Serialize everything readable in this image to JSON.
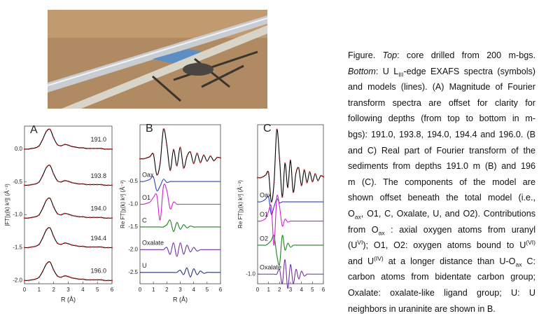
{
  "figure": {
    "caption": {
      "lines": [
        [
          "Figure. ",
          {
            "i": "Top"
          },
          ": core drilled from 200 m-bgs."
        ],
        [
          {
            "i": "Bottom"
          },
          ": U L",
          {
            "sub": "III"
          },
          "-edge EXAFS spectra (symbols)"
        ],
        [
          "and models (lines). (A) Magnitude of Fourier"
        ],
        [
          "transform spectra are offset for clarity for"
        ],
        [
          "following depths (from top to bottom in m-"
        ],
        [
          "bgs): 191.0, 193.8, 194.0, 194.4 and 196.0. (B"
        ],
        [
          "and C) Real part of Fourier transform of the"
        ],
        [
          "sediments from depths 191.0 m (B) and 196"
        ],
        [
          "m (C). The components of the model are"
        ],
        [
          "shown offset beneath the total model (i.e.,"
        ],
        [
          "O",
          {
            "sub": "ax"
          },
          ", O1, C, Oxalate, U, and O2). Contributions"
        ],
        [
          "from O",
          {
            "sub": "ax"
          },
          " : axial oxygen atoms from uranyl"
        ],
        [
          "(U",
          {
            "sup": "VI"
          },
          "); O1, O2: oxygen atoms bound to U",
          {
            "sup": "(VI)"
          }
        ],
        [
          "and U",
          {
            "sup": "(IV)"
          },
          " at a longer distance than U-O",
          {
            "sub": "ax"
          },
          " C:"
        ],
        [
          "carbon atoms from bidentate carbon group;"
        ],
        [
          "Oxalate: oxalate-like ligand group; U: U"
        ],
        [
          "neighbors in uraninite are shown in B."
        ]
      ]
    }
  },
  "chart_data": [
    {
      "type": "line",
      "title": "A",
      "xlabel": "R (Å)",
      "ylabel": "|FT[χ(k) k³]| (Å⁻³)",
      "xlim": [
        0,
        6
      ],
      "xticks": [
        0,
        1,
        2,
        3,
        4,
        5,
        6
      ],
      "ylim": [
        -2.05,
        0.35
      ],
      "yticks": [
        {
          "value": 0,
          "label": "0.0"
        },
        -0.5,
        {
          "value": -1,
          "label": "-1.0"
        },
        -1.5,
        {
          "value": -2,
          "label": "-2.0"
        }
      ],
      "x": [
        0,
        0.25,
        0.5,
        0.75,
        1,
        1.25,
        1.5,
        1.75,
        2,
        2.25,
        2.5,
        2.75,
        3,
        3.25,
        3.5,
        3.75,
        4,
        4.25,
        4.5,
        4.75,
        5,
        5.25,
        5.5,
        5.75,
        6
      ],
      "series": [
        {
          "name": "191.0",
          "color": "#000000",
          "marker_color": "#e02020",
          "values": [
            0,
            0,
            0.01,
            0.02,
            0.05,
            0.15,
            0.27,
            0.3,
            0.17,
            0.07,
            0.05,
            0.07,
            0.06,
            0.04,
            0.03,
            0.02,
            0.02,
            0.01,
            0.01,
            0.01,
            0.01,
            0.01,
            0,
            0,
            0
          ]
        },
        {
          "name": "193.8",
          "color": "#000000",
          "marker_color": "#e02020",
          "values": [
            -0.55,
            -0.55,
            -0.54,
            -0.53,
            -0.5,
            -0.4,
            -0.28,
            -0.25,
            -0.38,
            -0.48,
            -0.5,
            -0.48,
            -0.49,
            -0.51,
            -0.52,
            -0.53,
            -0.53,
            -0.54,
            -0.54,
            -0.54,
            -0.54,
            -0.54,
            -0.55,
            -0.55,
            -0.55
          ]
        },
        {
          "name": "194.0",
          "color": "#000000",
          "marker_color": "#e02020",
          "values": [
            -1.05,
            -1.05,
            -1.04,
            -1.03,
            -1,
            -0.9,
            -0.78,
            -0.75,
            -0.88,
            -0.98,
            -1,
            -0.98,
            -0.99,
            -1.01,
            -1.02,
            -1.03,
            -1.03,
            -1.04,
            -1.04,
            -1.04,
            -1.04,
            -1.04,
            -1.05,
            -1.05,
            -1.05
          ]
        },
        {
          "name": "194.4",
          "color": "#000000",
          "marker_color": "#e02020",
          "values": [
            -1.5,
            -1.5,
            -1.49,
            -1.48,
            -1.45,
            -1.35,
            -1.23,
            -1.2,
            -1.33,
            -1.43,
            -1.45,
            -1.43,
            -1.44,
            -1.46,
            -1.47,
            -1.48,
            -1.48,
            -1.49,
            -1.49,
            -1.49,
            -1.49,
            -1.49,
            -1.5,
            -1.5,
            -1.5
          ]
        },
        {
          "name": "196.0",
          "color": "#000000",
          "marker_color": "#e02020",
          "values": [
            -2,
            -2,
            -1.99,
            -1.98,
            -1.95,
            -1.86,
            -1.75,
            -1.72,
            -1.84,
            -1.93,
            -1.95,
            -1.93,
            -1.94,
            -1.96,
            -1.97,
            -1.98,
            -1.98,
            -1.99,
            -1.99,
            -1.99,
            -1.99,
            -1.99,
            -2,
            -2,
            -2
          ]
        }
      ]
    },
    {
      "type": "line",
      "title": "B",
      "xlabel": "R (Å)",
      "ylabel": "Re FT[χ(k) k³] (Å⁻³)",
      "xlim": [
        0,
        6
      ],
      "xticks": [
        0,
        1,
        2,
        3,
        4,
        5,
        6
      ],
      "ylim": [
        -2.75,
        0.75
      ],
      "yticks": [
        -0.5,
        {
          "value": -1,
          "label": "-1.0"
        },
        -1.5,
        {
          "value": -2,
          "label": "-2.0"
        },
        -2.5
      ],
      "x": [
        0,
        0.25,
        0.5,
        0.75,
        1,
        1.25,
        1.5,
        1.75,
        2,
        2.25,
        2.5,
        2.75,
        3,
        3.25,
        3.5,
        3.75,
        4,
        4.25,
        4.5,
        4.75,
        5,
        5.25,
        5.5,
        5.75,
        6
      ],
      "series": [
        {
          "color": "#000000",
          "marker_color": "#e02020",
          "values": [
            0,
            0,
            0.02,
            0.05,
            0.1,
            -0.35,
            -0.1,
            0.65,
            0.3,
            -0.25,
            0.2,
            -0.15,
            0.25,
            -0.2,
            0.05,
            0.15,
            -0.1,
            0.12,
            -0.08,
            0.08,
            -0.05,
            0.06,
            -0.04,
            0.03,
            0.02
          ]
        },
        {
          "name": "Oax",
          "color": "#3040c0",
          "values": [
            -0.5,
            -0.5,
            -0.48,
            -0.45,
            -0.4,
            -0.7,
            -0.6,
            -0.45,
            -0.52,
            -0.5,
            -0.5,
            -0.5,
            -0.5,
            -0.5,
            -0.5,
            -0.5,
            -0.5,
            -0.5,
            -0.5,
            -0.5,
            -0.5,
            -0.5,
            -0.5,
            -0.5,
            -0.5
          ]
        },
        {
          "name": "O1",
          "color": "#d020d0",
          "values": [
            -1,
            -1,
            -0.98,
            -0.95,
            -0.85,
            -0.8,
            -1.35,
            -0.6,
            -0.7,
            -1.1,
            -0.95,
            -1,
            -1,
            -1,
            -1,
            -1,
            -1,
            -1,
            -1,
            -1,
            -1,
            -1,
            -1,
            -1,
            -1
          ]
        },
        {
          "name": "C",
          "color": "#208020",
          "values": [
            -1.5,
            -1.5,
            -1.5,
            -1.5,
            -1.5,
            -1.5,
            -1.5,
            -1.5,
            -1.45,
            -1.35,
            -1.6,
            -1.4,
            -1.55,
            -1.45,
            -1.52,
            -1.48,
            -1.5,
            -1.5,
            -1.5,
            -1.5,
            -1.5,
            -1.5,
            -1.5,
            -1.5,
            -1.5
          ]
        },
        {
          "name": "Oxalate",
          "color": "#7030a0",
          "values": [
            -2,
            -2,
            -2,
            -2,
            -2,
            -2,
            -2,
            -2,
            -1.95,
            -2.1,
            -1.85,
            -2.15,
            -1.85,
            -2.1,
            -1.9,
            -2.05,
            -1.95,
            -2.03,
            -2,
            -2,
            -2,
            -2,
            -2,
            -2,
            -2
          ]
        },
        {
          "name": "U",
          "color": "#203080",
          "values": [
            -2.5,
            -2.5,
            -2.5,
            -2.5,
            -2.5,
            -2.5,
            -2.5,
            -2.5,
            -2.5,
            -2.5,
            -2.5,
            -2.5,
            -2.45,
            -2.55,
            -2.4,
            -2.6,
            -2.42,
            -2.55,
            -2.47,
            -2.52,
            -2.5,
            -2.5,
            -2.5,
            -2.5,
            -2.5
          ]
        }
      ]
    },
    {
      "type": "line",
      "title": "C",
      "ylabel": "Re FT[χ(k) k³] (Å⁻³)",
      "xlim": [
        0,
        6
      ],
      "xticks": [
        0,
        1,
        2,
        3,
        4,
        5,
        6
      ],
      "ylim": [
        -1.1,
        0.55
      ],
      "yticks": [
        {
          "value": -1,
          "label": "-1.0"
        }
      ],
      "x": [
        0,
        0.25,
        0.5,
        0.75,
        1,
        1.25,
        1.5,
        1.75,
        2,
        2.25,
        2.5,
        2.75,
        3,
        3.25,
        3.5,
        3.75,
        4,
        4.25,
        4.5,
        4.75,
        5,
        5.25,
        5.5,
        5.75,
        6
      ],
      "series": [
        {
          "color": "#000000",
          "marker_color": "#e02020",
          "values": [
            0,
            0,
            0.01,
            0.03,
            0.05,
            -0.25,
            -0.05,
            0.5,
            0.2,
            -0.2,
            0.15,
            -0.1,
            0.18,
            -0.15,
            0.05,
            0.1,
            -0.08,
            0.08,
            -0.05,
            0.06,
            -0.04,
            0.04,
            -0.03,
            0.02,
            0.01
          ]
        },
        {
          "name": "Oax",
          "color": "#3040c0",
          "values": [
            -0.25,
            -0.25,
            -0.24,
            -0.22,
            -0.2,
            -0.38,
            -0.3,
            -0.22,
            -0.26,
            -0.25,
            -0.25,
            -0.25,
            -0.25,
            -0.25,
            -0.25,
            -0.25,
            -0.25,
            -0.25,
            -0.25,
            -0.25,
            -0.25,
            -0.25,
            -0.25,
            -0.25,
            -0.25
          ]
        },
        {
          "name": "O1",
          "color": "#d020d0",
          "values": [
            -0.45,
            -0.45,
            -0.44,
            -0.42,
            -0.35,
            -0.3,
            -0.7,
            -0.2,
            -0.3,
            -0.5,
            -0.43,
            -0.46,
            -0.45,
            -0.45,
            -0.45,
            -0.45,
            -0.45,
            -0.45,
            -0.45,
            -0.45,
            -0.45,
            -0.45,
            -0.45,
            -0.45,
            -0.45
          ]
        },
        {
          "name": "O2",
          "color": "#208020",
          "values": [
            -0.7,
            -0.7,
            -0.7,
            -0.7,
            -0.68,
            -0.65,
            -0.6,
            -0.8,
            -0.9,
            -0.6,
            -0.75,
            -0.68,
            -0.72,
            -0.7,
            -0.7,
            -0.7,
            -0.7,
            -0.7,
            -0.7,
            -0.7,
            -0.7,
            -0.7,
            -0.7,
            -0.7,
            -0.7
          ]
        },
        {
          "name": "Oxalate",
          "color": "#7030a0",
          "values": [
            -1,
            -1,
            -1,
            -1,
            -1,
            -1,
            -1,
            -1,
            -0.95,
            -1.1,
            -0.85,
            -1.15,
            -0.9,
            -1.1,
            -0.95,
            -1.05,
            -0.97,
            -1.02,
            -1,
            -1,
            -1,
            -1,
            -1,
            -1,
            -1
          ]
        }
      ]
    }
  ]
}
